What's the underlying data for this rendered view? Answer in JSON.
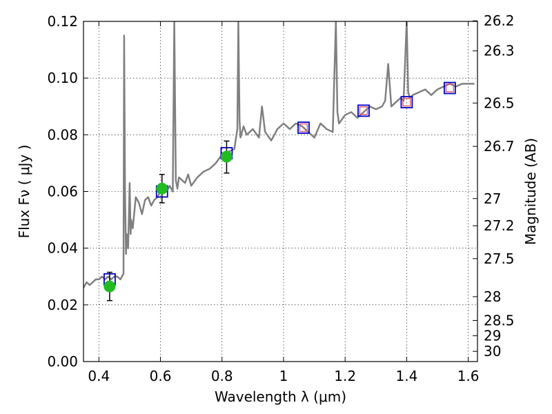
{
  "chart_data": {
    "type": "line",
    "xlabel": "Wavelength  λ (μm)",
    "ylabel": "Flux  Fν  ( μJy )",
    "y2label": "Magnitude (AB)",
    "xlim": [
      0.35,
      1.63
    ],
    "ylim": [
      0.0,
      0.12
    ],
    "grid": true,
    "x_ticks": [
      0.4,
      0.6,
      0.8,
      1.0,
      1.2,
      1.4,
      1.6
    ],
    "x_tick_labels": [
      "0.4",
      "0.6",
      "0.8",
      "1",
      "1.2",
      "1.4",
      "1.6"
    ],
    "y_ticks": [
      0.0,
      0.02,
      0.04,
      0.06,
      0.08,
      0.1,
      0.12
    ],
    "y_tick_labels": [
      "0.00",
      "0.02",
      "0.04",
      "0.06",
      "0.08",
      "0.10",
      "0.12"
    ],
    "y2_ticks": [
      {
        "label": "26.2",
        "flux": 0.1202
      },
      {
        "label": "26.3",
        "flux": 0.1096
      },
      {
        "label": "26.5",
        "flux": 0.0912
      },
      {
        "label": "26.7",
        "flux": 0.0759
      },
      {
        "label": "27",
        "flux": 0.0575
      },
      {
        "label": "27.2",
        "flux": 0.0479
      },
      {
        "label": "27.5",
        "flux": 0.0363
      },
      {
        "label": "28",
        "flux": 0.0229
      },
      {
        "label": "28.5",
        "flux": 0.0145
      },
      {
        "label": "29",
        "flux": 0.0091
      },
      {
        "label": "30",
        "flux": 0.0036
      }
    ],
    "series": [
      {
        "type": "line",
        "color": "#808080",
        "x": [
          0.35,
          0.36,
          0.37,
          0.38,
          0.39,
          0.4,
          0.41,
          0.42,
          0.43,
          0.44,
          0.45,
          0.46,
          0.47,
          0.48,
          0.482,
          0.485,
          0.488,
          0.49,
          0.495,
          0.5,
          0.503,
          0.505,
          0.51,
          0.52,
          0.53,
          0.54,
          0.55,
          0.56,
          0.57,
          0.58,
          0.59,
          0.6,
          0.61,
          0.62,
          0.63,
          0.64,
          0.645,
          0.65,
          0.655,
          0.66,
          0.67,
          0.68,
          0.69,
          0.7,
          0.72,
          0.74,
          0.76,
          0.78,
          0.8,
          0.82,
          0.84,
          0.85,
          0.853,
          0.857,
          0.86,
          0.87,
          0.88,
          0.9,
          0.92,
          0.93,
          0.94,
          0.96,
          0.98,
          1.0,
          1.02,
          1.04,
          1.06,
          1.08,
          1.1,
          1.12,
          1.14,
          1.16,
          1.17,
          1.175,
          1.18,
          1.2,
          1.22,
          1.24,
          1.26,
          1.28,
          1.3,
          1.32,
          1.33,
          1.34,
          1.35,
          1.36,
          1.38,
          1.39,
          1.4,
          1.405,
          1.41,
          1.42,
          1.44,
          1.46,
          1.48,
          1.5,
          1.52,
          1.54,
          1.56,
          1.58,
          1.6,
          1.62
        ],
        "y": [
          0.026,
          0.028,
          0.027,
          0.028,
          0.029,
          0.029,
          0.03,
          0.029,
          0.03,
          0.029,
          0.03,
          0.03,
          0.029,
          0.031,
          0.115,
          0.06,
          0.038,
          0.045,
          0.04,
          0.063,
          0.045,
          0.05,
          0.047,
          0.058,
          0.056,
          0.052,
          0.057,
          0.058,
          0.055,
          0.057,
          0.058,
          0.06,
          0.061,
          0.06,
          0.062,
          0.06,
          0.12,
          0.064,
          0.061,
          0.065,
          0.064,
          0.063,
          0.066,
          0.062,
          0.065,
          0.067,
          0.068,
          0.07,
          0.073,
          0.074,
          0.075,
          0.082,
          0.12,
          0.085,
          0.079,
          0.083,
          0.08,
          0.082,
          0.079,
          0.09,
          0.081,
          0.078,
          0.082,
          0.084,
          0.082,
          0.084,
          0.083,
          0.081,
          0.079,
          0.084,
          0.082,
          0.081,
          0.12,
          0.088,
          0.084,
          0.087,
          0.088,
          0.086,
          0.088,
          0.09,
          0.089,
          0.09,
          0.092,
          0.105,
          0.09,
          0.091,
          0.093,
          0.092,
          0.12,
          0.095,
          0.093,
          0.094,
          0.095,
          0.096,
          0.094,
          0.096,
          0.097,
          0.098,
          0.097,
          0.098,
          0.098,
          0.098
        ]
      },
      {
        "type": "open-square",
        "color": "#0000cc",
        "x": [
          0.435,
          0.605,
          0.815,
          1.065,
          1.26,
          1.4,
          1.54
        ],
        "y": [
          0.029,
          0.06,
          0.0735,
          0.0825,
          0.0885,
          0.0915,
          0.0965
        ]
      },
      {
        "type": "small-open-square",
        "color": "#e06070",
        "x": [
          1.065,
          1.26,
          1.4,
          1.54
        ],
        "y": [
          0.0825,
          0.0885,
          0.0915,
          0.0965
        ]
      },
      {
        "type": "points-with-errors",
        "color": "#22bb22",
        "x": [
          0.435,
          0.605,
          0.815
        ],
        "y": [
          0.0265,
          0.061,
          0.0723
        ],
        "err_low": [
          0.0215,
          0.056,
          0.0665
        ],
        "err_high": [
          0.0315,
          0.066,
          0.0778
        ]
      }
    ]
  }
}
